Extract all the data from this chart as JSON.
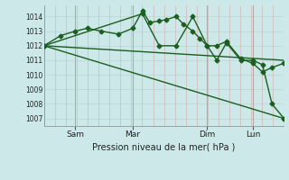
{
  "background_color": "#cce8e8",
  "grid_color_h": "#c0d8d8",
  "grid_color_v": "#d4b8b8",
  "line_color": "#1a5e20",
  "ylim": [
    1006.5,
    1014.8
  ],
  "yticks": [
    1007,
    1008,
    1009,
    1010,
    1011,
    1012,
    1013,
    1014
  ],
  "xlabel": "Pression niveau de la mer( hPa )",
  "x_tick_labels": [
    "Sam",
    "Mar",
    "Dim",
    "Lun"
  ],
  "x_tick_positions": [
    0.13,
    0.37,
    0.68,
    0.87
  ],
  "vline_positions": [
    0.13,
    0.37,
    0.68,
    0.87
  ],
  "series": [
    {
      "x": [
        0.0,
        0.07,
        0.13,
        0.18,
        0.24,
        0.31,
        0.37,
        0.41,
        0.44,
        0.48,
        0.51,
        0.55,
        0.58,
        0.62,
        0.65,
        0.68,
        0.72,
        0.76,
        0.82,
        0.87,
        0.91,
        0.95,
        1.0
      ],
      "y": [
        1012.0,
        1012.7,
        1013.0,
        1013.2,
        1013.0,
        1012.8,
        1013.2,
        1014.4,
        1013.6,
        1013.7,
        1013.8,
        1014.0,
        1013.5,
        1013.0,
        1012.5,
        1012.0,
        1012.0,
        1012.3,
        1011.1,
        1010.8,
        1010.2,
        1010.5,
        1010.8
      ],
      "marker": "D",
      "markersize": 2.5,
      "linewidth": 1.0
    },
    {
      "x": [
        0.0,
        0.41,
        0.48,
        0.55,
        0.62,
        0.68,
        0.72,
        0.76,
        0.82,
        0.87,
        0.91,
        0.95,
        1.0
      ],
      "y": [
        1012.0,
        1014.2,
        1012.0,
        1012.0,
        1014.0,
        1012.0,
        1011.0,
        1012.2,
        1011.0,
        1011.0,
        1010.7,
        1008.0,
        1007.0
      ],
      "marker": "D",
      "markersize": 2.5,
      "linewidth": 1.0
    },
    {
      "x": [
        0.0,
        1.0
      ],
      "y": [
        1012.0,
        1011.0
      ],
      "marker": null,
      "markersize": 0,
      "linewidth": 1.0
    },
    {
      "x": [
        0.0,
        1.0
      ],
      "y": [
        1012.0,
        1007.0
      ],
      "marker": null,
      "markersize": 0,
      "linewidth": 1.0
    }
  ]
}
